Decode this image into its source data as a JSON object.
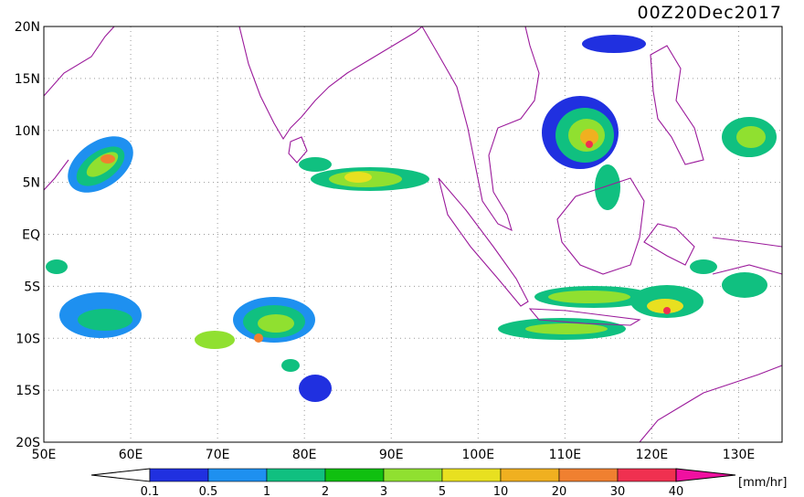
{
  "title": "00Z20Dec2017",
  "map": {
    "lat_labels": [
      "20N",
      "15N",
      "10N",
      "5N",
      "EQ",
      "5S",
      "10S",
      "15S",
      "20S"
    ],
    "lon_labels": [
      "50E",
      "60E",
      "70E",
      "80E",
      "90E",
      "100E",
      "110E",
      "120E",
      "130E"
    ]
  },
  "legend": {
    "labels": [
      "0.1",
      "0.5",
      "1",
      "2",
      "3",
      "5",
      "10",
      "20",
      "30",
      "40"
    ],
    "unit": "[mm/hr]"
  }
}
